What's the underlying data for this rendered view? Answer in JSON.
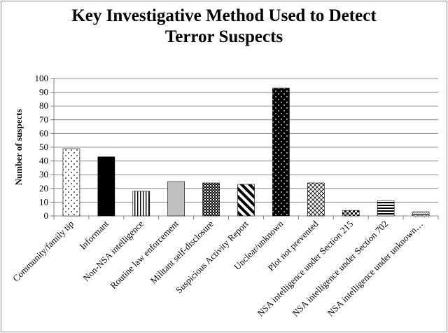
{
  "chart_data": {
    "type": "bar",
    "title_line1": "Key Investigative Method Used to Detect",
    "title_line2": "Terror Suspects",
    "ylabel": "Number of suspects",
    "xlabel": "",
    "ylim": [
      0,
      100
    ],
    "yticks": [
      0,
      10,
      20,
      30,
      40,
      50,
      60,
      70,
      80,
      90,
      100
    ],
    "grid": true,
    "categories": [
      "Community/family tip",
      "Informant",
      "Non-NSA intelligence",
      "Routine law enforcement",
      "Militant self-disclosure",
      "Suspicious Activity Report",
      "Unclear/unknown",
      "Plot not prevented",
      "NSA intelligence under Section 215",
      "NSA intelligence under Section 702",
      "NSA intelligence under unknown…"
    ],
    "values": [
      49,
      43,
      18,
      25,
      24,
      23,
      93,
      24,
      4,
      11,
      3
    ],
    "patterns": [
      "sparse-dots",
      "solid-black",
      "vertical-stripes",
      "solid-gray",
      "dense-checker",
      "diagonal-stripes",
      "white-dots-on-black",
      "crosshatch",
      "small-checker",
      "horizontal-stripes",
      "zigzag"
    ],
    "colors": {
      "gridline": "#8c8c8c",
      "axis": "#7f7f7f",
      "bar_outline": "#000000",
      "gray_fill": "#bfbfbf"
    }
  }
}
